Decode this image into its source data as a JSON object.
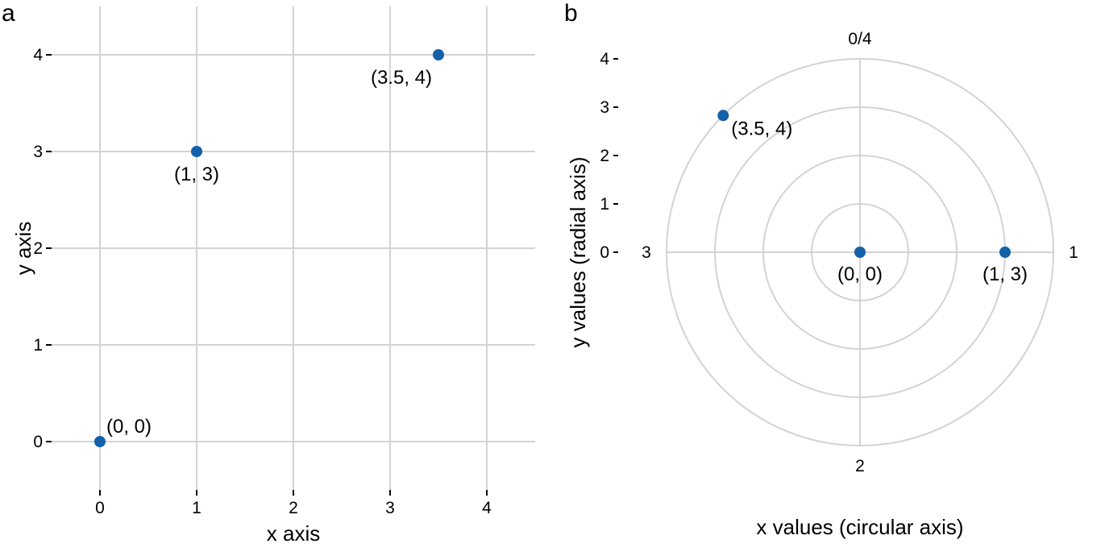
{
  "point_color": "#1361a8",
  "grid_color": "#d3d3d3",
  "chart_data": [
    {
      "type": "scatter",
      "coordinate_system": "cartesian",
      "panel_label": "a",
      "xlabel": "x axis",
      "ylabel": "y axis",
      "xlim": [
        -0.5,
        4.5
      ],
      "ylim": [
        -0.5,
        4.5
      ],
      "x_ticks": [
        0,
        1,
        2,
        3,
        4
      ],
      "y_ticks": [
        0,
        1,
        2,
        3,
        4
      ],
      "x_tick_labels": [
        "0",
        "1",
        "2",
        "3",
        "4"
      ],
      "y_tick_labels": [
        "0",
        "1",
        "2",
        "3",
        "4"
      ],
      "grid": true,
      "points": [
        {
          "x": 0,
          "y": 0,
          "label": "(0, 0)"
        },
        {
          "x": 1,
          "y": 3,
          "label": "(1, 3)"
        },
        {
          "x": 3.5,
          "y": 4,
          "label": "(3.5, 4)"
        }
      ]
    },
    {
      "type": "scatter",
      "coordinate_system": "polar",
      "panel_label": "b",
      "xlabel": "x values (circular axis)",
      "ylabel": "y values (radial axis)",
      "angular_period": 4,
      "radial_lim": [
        0,
        4
      ],
      "angular_ticks": [
        0,
        1,
        2,
        3
      ],
      "angular_tick_labels": [
        "0/4",
        "1",
        "2",
        "3"
      ],
      "radial_ticks": [
        0,
        1,
        2,
        3,
        4
      ],
      "radial_tick_labels": [
        "0",
        "1",
        "2",
        "3",
        "4"
      ],
      "grid": true,
      "points": [
        {
          "x": 0,
          "y": 0,
          "label": "(0, 0)"
        },
        {
          "x": 1,
          "y": 3,
          "label": "(1, 3)"
        },
        {
          "x": 3.5,
          "y": 4,
          "label": "(3.5, 4)"
        }
      ]
    }
  ]
}
